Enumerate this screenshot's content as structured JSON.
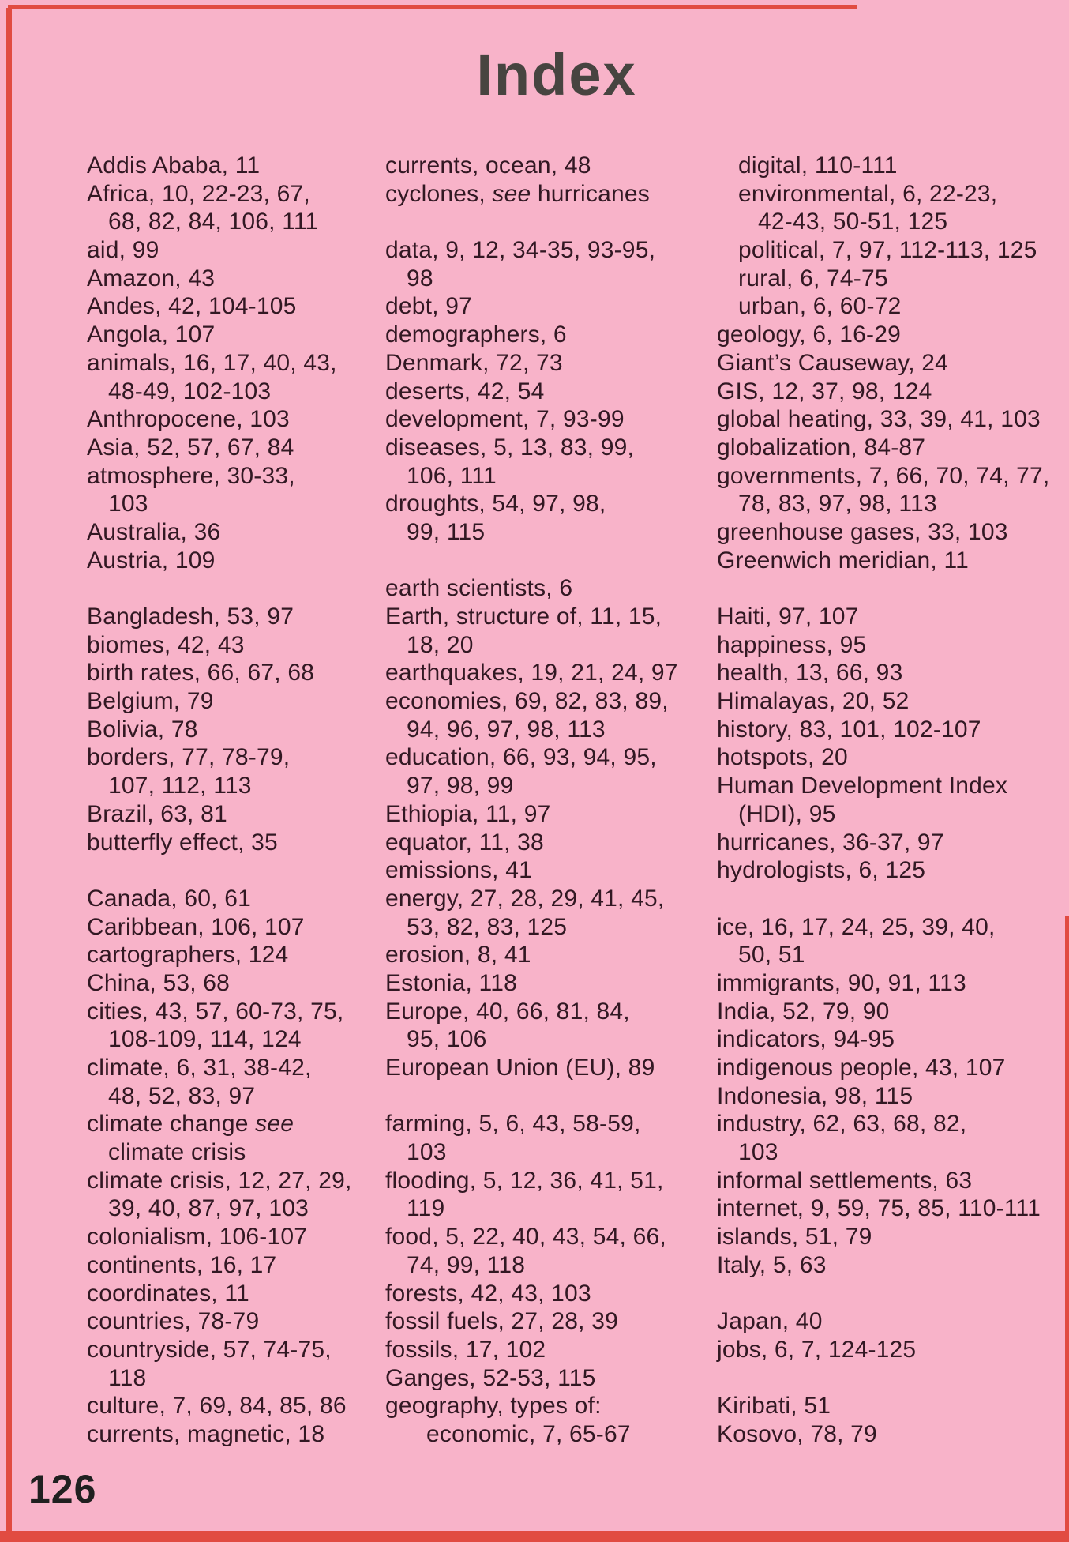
{
  "page": {
    "title": "Index",
    "page_number": "126"
  },
  "colors": {
    "page_background": "#f8b3c9",
    "text": "#321823",
    "title": "#474440",
    "cover_edge_red": "#e14b41"
  },
  "index_columns": [
    {
      "id": "column-a-c",
      "lines": [
        {
          "text": "Addis Ababa, 11",
          "indent": 0
        },
        {
          "text": "Africa, 10, 22-23, 67,",
          "indent": 0
        },
        {
          "text": "68, 82, 84, 106, 111",
          "indent": 1
        },
        {
          "text": "aid, 99",
          "indent": 0
        },
        {
          "text": "Amazon, 43",
          "indent": 0
        },
        {
          "text": "Andes, 42, 104-105",
          "indent": 0
        },
        {
          "text": "Angola, 107",
          "indent": 0
        },
        {
          "text": "animals, 16, 17, 40, 43,",
          "indent": 0
        },
        {
          "text": "48-49, 102-103",
          "indent": 1
        },
        {
          "text": "Anthropocene, 103",
          "indent": 0
        },
        {
          "text": "Asia, 52, 57, 67, 84",
          "indent": 0
        },
        {
          "text": "atmosphere, 30-33,",
          "indent": 0
        },
        {
          "text": "103",
          "indent": 1
        },
        {
          "text": "Australia, 36",
          "indent": 0
        },
        {
          "text": "Austria, 109",
          "indent": 0
        },
        {
          "gap": true
        },
        {
          "text": "Bangladesh, 53, 97",
          "indent": 0
        },
        {
          "text": "biomes, 42, 43",
          "indent": 0
        },
        {
          "text": "birth rates, 66, 67, 68",
          "indent": 0
        },
        {
          "text": "Belgium, 79",
          "indent": 0
        },
        {
          "text": "Bolivia, 78",
          "indent": 0
        },
        {
          "text": "borders, 77, 78-79,",
          "indent": 0
        },
        {
          "text": "107, 112, 113",
          "indent": 1
        },
        {
          "text": "Brazil, 63, 81",
          "indent": 0
        },
        {
          "text": "butterfly effect, 35",
          "indent": 0
        },
        {
          "gap": true
        },
        {
          "text": "Canada, 60, 61",
          "indent": 0
        },
        {
          "text": "Caribbean, 106, 107",
          "indent": 0
        },
        {
          "text": "cartographers, 124",
          "indent": 0
        },
        {
          "text": "China, 53, 68",
          "indent": 0
        },
        {
          "text": "cities, 43, 57, 60-73, 75,",
          "indent": 0
        },
        {
          "text": "108-109, 114, 124",
          "indent": 1
        },
        {
          "text": "climate, 6, 31, 38-42,",
          "indent": 0
        },
        {
          "text": "48, 52, 83, 97",
          "indent": 1
        },
        {
          "pre": "climate change ",
          "em": "see",
          "post": "",
          "indent": 0
        },
        {
          "text": "climate crisis",
          "indent": 1
        },
        {
          "text": "climate crisis, 12, 27, 29,",
          "indent": 0
        },
        {
          "text": "39, 40, 87, 97, 103",
          "indent": 1
        },
        {
          "text": "colonialism, 106-107",
          "indent": 0
        },
        {
          "text": "continents, 16, 17",
          "indent": 0
        },
        {
          "text": "coordinates, 11",
          "indent": 0
        },
        {
          "text": "countries, 78-79",
          "indent": 0
        },
        {
          "text": "countryside, 57, 74-75,",
          "indent": 0
        },
        {
          "text": "118",
          "indent": 1
        },
        {
          "text": "culture, 7, 69, 84, 85, 86",
          "indent": 0
        },
        {
          "text": "currents, magnetic, 18",
          "indent": 0
        }
      ]
    },
    {
      "id": "column-c-g",
      "lines": [
        {
          "text": "currents, ocean, 48",
          "indent": 0
        },
        {
          "pre": "cyclones, ",
          "em": "see",
          "post": " hurricanes",
          "indent": 0
        },
        {
          "gap": true
        },
        {
          "text": "data, 9, 12, 34-35, 93-95,",
          "indent": 0
        },
        {
          "text": "98",
          "indent": 1
        },
        {
          "text": "debt, 97",
          "indent": 0
        },
        {
          "text": "demographers, 6",
          "indent": 0
        },
        {
          "text": "Denmark, 72, 73",
          "indent": 0
        },
        {
          "text": "deserts, 42, 54",
          "indent": 0
        },
        {
          "text": "development, 7, 93-99",
          "indent": 0
        },
        {
          "text": "diseases, 5, 13, 83, 99,",
          "indent": 0
        },
        {
          "text": "106, 111",
          "indent": 1
        },
        {
          "text": "droughts, 54, 97, 98,",
          "indent": 0
        },
        {
          "text": "99, 115",
          "indent": 1
        },
        {
          "gap": true
        },
        {
          "text": "earth scientists, 6",
          "indent": 0
        },
        {
          "text": "Earth, structure of, 11, 15,",
          "indent": 0
        },
        {
          "text": "18, 20",
          "indent": 1
        },
        {
          "text": "earthquakes, 19, 21, 24, 97",
          "indent": 0
        },
        {
          "text": "economies, 69, 82, 83, 89,",
          "indent": 0
        },
        {
          "text": "94, 96, 97, 98, 113",
          "indent": 1
        },
        {
          "text": "education, 66, 93, 94, 95,",
          "indent": 0
        },
        {
          "text": "97, 98, 99",
          "indent": 1
        },
        {
          "text": "Ethiopia, 11, 97",
          "indent": 0
        },
        {
          "text": "equator, 11, 38",
          "indent": 0
        },
        {
          "text": "emissions, 41",
          "indent": 0
        },
        {
          "text": "energy, 27, 28, 29, 41, 45,",
          "indent": 0
        },
        {
          "text": "53, 82, 83, 125",
          "indent": 1
        },
        {
          "text": "erosion, 8, 41",
          "indent": 0
        },
        {
          "text": "Estonia, 118",
          "indent": 0
        },
        {
          "text": "Europe, 40, 66, 81, 84,",
          "indent": 0
        },
        {
          "text": "95, 106",
          "indent": 1
        },
        {
          "text": "European Union (EU), 89",
          "indent": 0
        },
        {
          "gap": true
        },
        {
          "text": "farming, 5, 6, 43, 58-59,",
          "indent": 0
        },
        {
          "text": "103",
          "indent": 1
        },
        {
          "text": "flooding, 5, 12, 36, 41, 51,",
          "indent": 0
        },
        {
          "text": "119",
          "indent": 1
        },
        {
          "text": "food, 5, 22, 40, 43, 54, 66,",
          "indent": 0
        },
        {
          "text": "74, 99, 118",
          "indent": 1
        },
        {
          "text": "forests, 42, 43, 103",
          "indent": 0
        },
        {
          "text": "fossil fuels, 27, 28, 39",
          "indent": 0
        },
        {
          "text": "fossils, 17, 102",
          "indent": 0
        },
        {
          "text": "Ganges, 52-53, 115",
          "indent": 0
        },
        {
          "text": "geography, types of:",
          "indent": 0
        },
        {
          "text": "economic, 7, 65-67",
          "indent": 2
        }
      ]
    },
    {
      "id": "column-g-k",
      "lines": [
        {
          "text": "digital, 110-111",
          "indent": 1
        },
        {
          "text": "environmental, 6, 22-23,",
          "indent": 1
        },
        {
          "text": "42-43, 50-51, 125",
          "indent": 2
        },
        {
          "text": "political, 7, 97, 112-113, 125",
          "indent": 1
        },
        {
          "text": "rural, 6, 74-75",
          "indent": 1
        },
        {
          "text": "urban, 6, 60-72",
          "indent": 1
        },
        {
          "text": "geology, 6, 16-29",
          "indent": 0
        },
        {
          "text": "Giant’s Causeway, 24",
          "indent": 0
        },
        {
          "text": "GIS, 12, 37, 98, 124",
          "indent": 0
        },
        {
          "text": "global heating, 33, 39, 41, 103",
          "indent": 0
        },
        {
          "text": "globalization, 84-87",
          "indent": 0
        },
        {
          "text": "governments, 7, 66, 70, 74, 77,",
          "indent": 0
        },
        {
          "text": "78, 83, 97, 98, 113",
          "indent": 1
        },
        {
          "text": "greenhouse gases, 33, 103",
          "indent": 0
        },
        {
          "text": "Greenwich meridian, 11",
          "indent": 0
        },
        {
          "gap": true
        },
        {
          "text": "Haiti, 97, 107",
          "indent": 0
        },
        {
          "text": "happiness, 95",
          "indent": 0
        },
        {
          "text": "health, 13, 66, 93",
          "indent": 0
        },
        {
          "text": "Himalayas, 20, 52",
          "indent": 0
        },
        {
          "text": "history, 83, 101, 102-107",
          "indent": 0
        },
        {
          "text": "hotspots, 20",
          "indent": 0
        },
        {
          "text": "Human Development Index",
          "indent": 0
        },
        {
          "text": "(HDI), 95",
          "indent": 1
        },
        {
          "text": "hurricanes, 36-37, 97",
          "indent": 0
        },
        {
          "text": "hydrologists, 6, 125",
          "indent": 0
        },
        {
          "gap": true
        },
        {
          "text": "ice, 16, 17, 24, 25, 39, 40,",
          "indent": 0
        },
        {
          "text": "50, 51",
          "indent": 1
        },
        {
          "text": "immigrants, 90, 91, 113",
          "indent": 0
        },
        {
          "text": "India, 52, 79, 90",
          "indent": 0
        },
        {
          "text": "indicators, 94-95",
          "indent": 0
        },
        {
          "text": "indigenous people, 43, 107",
          "indent": 0
        },
        {
          "text": "Indonesia, 98, 115",
          "indent": 0
        },
        {
          "text": "industry, 62, 63, 68, 82,",
          "indent": 0
        },
        {
          "text": "103",
          "indent": 1
        },
        {
          "text": "informal settlements, 63",
          "indent": 0
        },
        {
          "text": "internet, 9, 59, 75, 85, 110-111",
          "indent": 0
        },
        {
          "text": "islands, 51, 79",
          "indent": 0
        },
        {
          "text": "Italy, 5, 63",
          "indent": 0
        },
        {
          "gap": true
        },
        {
          "text": "Japan, 40",
          "indent": 0
        },
        {
          "text": "jobs, 6, 7, 124-125",
          "indent": 0
        },
        {
          "gap": true
        },
        {
          "text": "Kiribati, 51",
          "indent": 0
        },
        {
          "text": "Kosovo, 78, 79",
          "indent": 0
        }
      ]
    }
  ]
}
